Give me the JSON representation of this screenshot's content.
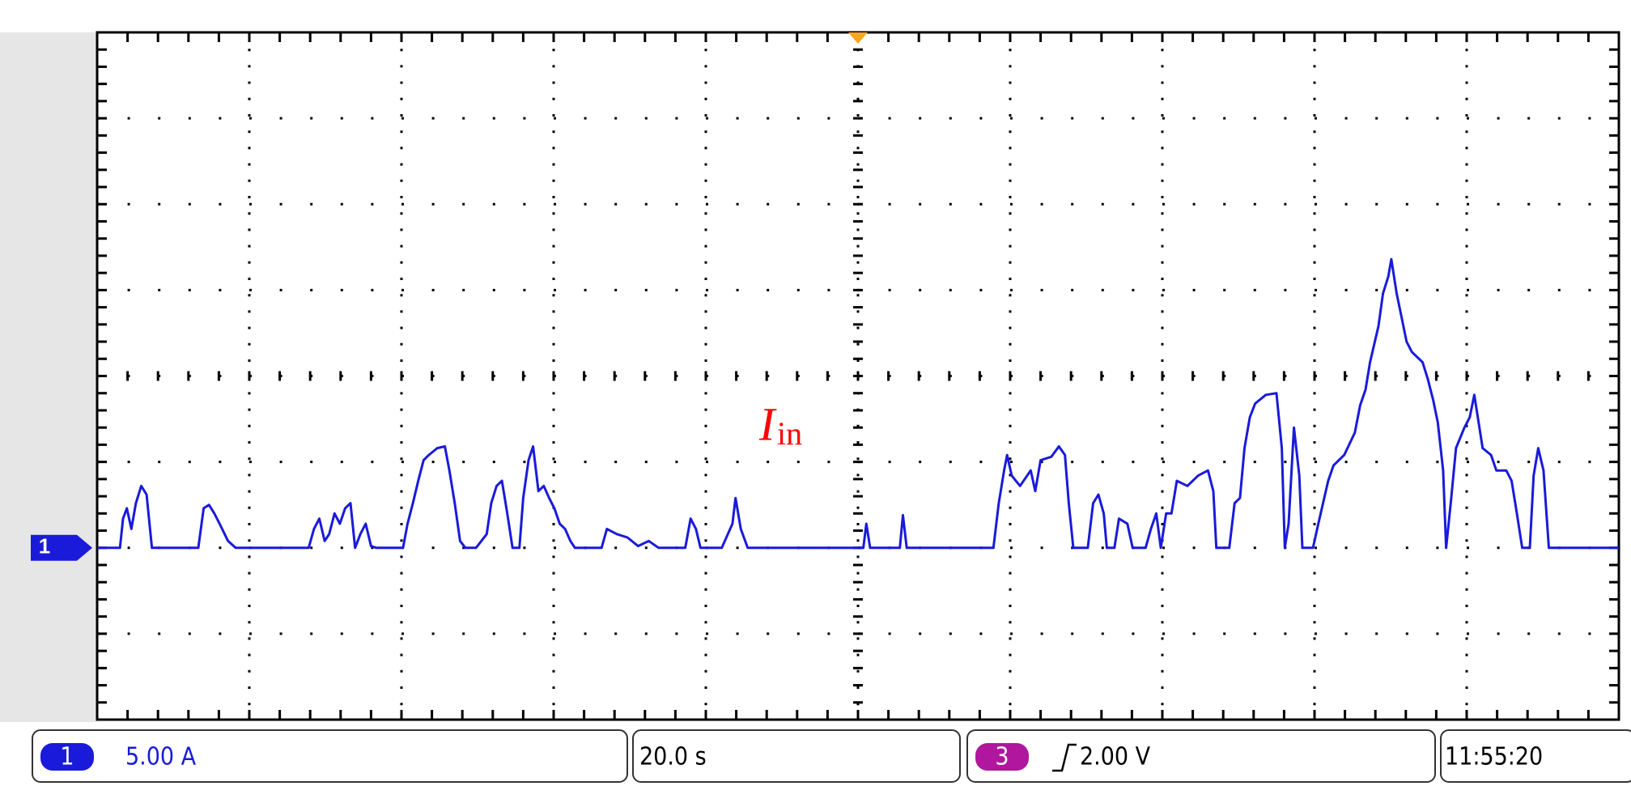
{
  "chart_data": {
    "type": "line",
    "color": "#1a1adb",
    "channel_marker": "1",
    "annotation": {
      "text": "I",
      "subscript": "in"
    },
    "xlim": [
      0,
      200
    ],
    "xticks": [
      0,
      20,
      40,
      60,
      80,
      100,
      120,
      140,
      160,
      180,
      200
    ],
    "ylim": [
      -10,
      30
    ],
    "yticks": [
      -10,
      -5,
      0,
      5,
      10,
      15,
      20,
      25,
      30
    ],
    "grid": true,
    "x": [
      0.0,
      3.0,
      3.4,
      3.9,
      4.5,
      5.1,
      5.8,
      6.5,
      7.2,
      7.8,
      13.3,
      14.0,
      14.7,
      15.4,
      16.1,
      17.2,
      18.2,
      27.8,
      28.5,
      29.2,
      29.9,
      30.5,
      31.2,
      31.9,
      32.6,
      33.3,
      33.9,
      34.6,
      35.3,
      36.0,
      36.7,
      40.2,
      40.8,
      41.5,
      42.2,
      42.9,
      43.6,
      44.7,
      45.7,
      46.3,
      47.0,
      47.7,
      48.4,
      49.8,
      51.2,
      51.8,
      52.5,
      53.2,
      53.9,
      54.6,
      55.5,
      56.0,
      56.7,
      57.3,
      58.0,
      58.7,
      59.4,
      60.1,
      60.8,
      61.5,
      62.2,
      62.8,
      66.3,
      67.0,
      68.3,
      69.7,
      71.1,
      72.5,
      73.8,
      77.3,
      78.0,
      78.7,
      79.3,
      82.1,
      83.5,
      83.9,
      84.6,
      85.5,
      100.7,
      101.1,
      101.6,
      105.5,
      105.9,
      106.4,
      117.8,
      118.5,
      119.2,
      119.6,
      120.2,
      121.3,
      122.7,
      123.3,
      124.0,
      125.4,
      126.4,
      127.2,
      127.7,
      128.3,
      130.2,
      130.9,
      131.6,
      132.3,
      132.7,
      133.7,
      134.3,
      135.4,
      136.1,
      137.8,
      138.5,
      139.2,
      139.8,
      140.5,
      141.2,
      141.9,
      143.3,
      144.7,
      146.0,
      146.7,
      147.1,
      148.8,
      149.5,
      150.2,
      150.8,
      151.5,
      152.2,
      153.6,
      155.0,
      155.7,
      156.1,
      156.6,
      157.3,
      158.0,
      158.4,
      159.8,
      160.5,
      161.8,
      162.5,
      163.9,
      165.3,
      166.0,
      166.7,
      167.3,
      168.4,
      169.0,
      169.7,
      170.1,
      170.8,
      171.5,
      172.1,
      172.8,
      174.2,
      174.9,
      175.6,
      176.2,
      176.9,
      177.3,
      177.9,
      178.6,
      179.7,
      180.4,
      181.0,
      182.1,
      183.2,
      183.9,
      185.2,
      185.9,
      186.6,
      187.3,
      188.3,
      188.8,
      189.4,
      190.1,
      190.8,
      200.0
    ],
    "values": [
      0,
      0,
      1.7,
      2.3,
      1.1,
      2.6,
      3.6,
      3.1,
      0,
      0,
      0,
      2.3,
      2.5,
      2.0,
      1.4,
      0.4,
      0,
      0,
      1.1,
      1.7,
      0.4,
      0.8,
      2.0,
      1.4,
      2.3,
      2.6,
      0,
      0.8,
      1.4,
      0.1,
      0,
      0,
      1.4,
      2.6,
      3.9,
      5.1,
      5.4,
      5.8,
      5.9,
      4.5,
      2.6,
      0.4,
      0,
      0,
      0.8,
      2.6,
      3.6,
      3.9,
      2.0,
      0,
      0,
      2.9,
      5.1,
      5.9,
      3.3,
      3.6,
      2.9,
      2.3,
      1.4,
      1.1,
      0.4,
      0,
      0,
      1.1,
      0.8,
      0.6,
      0.1,
      0.4,
      0,
      0,
      1.7,
      1.1,
      0,
      0,
      1.4,
      2.9,
      1.1,
      0,
      0,
      1.4,
      0,
      0,
      1.9,
      0,
      0,
      2.6,
      4.5,
      5.4,
      4.2,
      3.6,
      4.5,
      3.3,
      5.1,
      5.3,
      5.9,
      5.4,
      2.6,
      0,
      0,
      2.6,
      3.1,
      2.0,
      0,
      0,
      1.7,
      1.4,
      0,
      0,
      1.1,
      2.0,
      0,
      2.0,
      2.0,
      3.9,
      3.6,
      4.2,
      4.5,
      3.3,
      0,
      0,
      2.6,
      2.9,
      5.8,
      7.6,
      8.4,
      8.9,
      9.0,
      5.8,
      0,
      1.4,
      7.0,
      4.2,
      0,
      0,
      1.4,
      3.9,
      4.8,
      5.4,
      6.7,
      8.3,
      9.2,
      10.8,
      12.9,
      14.8,
      15.8,
      16.8,
      14.8,
      13.3,
      12.0,
      11.4,
      10.8,
      9.8,
      8.6,
      7.3,
      4.5,
      0,
      2.6,
      5.8,
      7.0,
      7.6,
      8.9,
      5.8,
      5.4,
      4.5,
      4.5,
      3.9,
      2.0,
      0,
      0,
      4.2,
      5.8,
      4.5,
      0,
      0
    ]
  },
  "status": {
    "channel": "1",
    "scale": "5.00 A",
    "timebase": "20.0 s",
    "trigger_channel": "3",
    "trigger_level": "2.00 V",
    "time": "11:55:20"
  }
}
